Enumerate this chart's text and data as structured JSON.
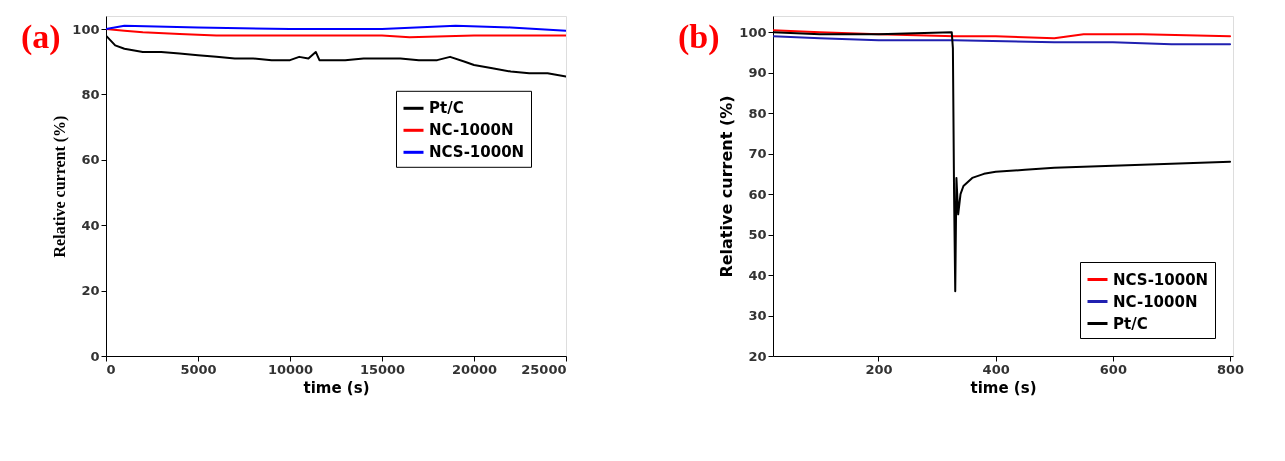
{
  "chart_data": [
    {
      "type": "line",
      "annotations": [
        "(a)"
      ],
      "xlabel": "time (s)",
      "ylabel": "Relative current (%)",
      "xlim": [
        0,
        25000
      ],
      "ylim": [
        0,
        104
      ],
      "xticks": [
        0,
        5000,
        10000,
        15000,
        20000,
        25000
      ],
      "yticks": [
        0,
        20,
        40,
        60,
        80,
        100
      ],
      "grid": false,
      "legend": "right",
      "line_style": "solid",
      "marker": "none",
      "series": [
        {
          "name": "Pt/C",
          "color": "#000000",
          "x": [
            0,
            500,
            1000,
            2000,
            3000,
            4000,
            5000,
            6000,
            7000,
            8000,
            9000,
            10000,
            10500,
            11000,
            11400,
            11600,
            12000,
            13000,
            14000,
            15000,
            16000,
            17000,
            18000,
            18700,
            19500,
            20000,
            21000,
            22000,
            23000,
            24000,
            25000
          ],
          "values": [
            98,
            95,
            94,
            93,
            93,
            92.5,
            92,
            91.5,
            91,
            91,
            90.5,
            90.5,
            91.5,
            91,
            93,
            90.5,
            90.5,
            90.5,
            91,
            91,
            91,
            90.5,
            90.5,
            91.5,
            90,
            89,
            88,
            87,
            86.5,
            86.5,
            85.5
          ]
        },
        {
          "name": "NC-1000N",
          "color": "#ff0000",
          "x": [
            0,
            1000,
            2000,
            4000,
            6000,
            10000,
            15000,
            16500,
            20000,
            25000
          ],
          "values": [
            100,
            99.5,
            99,
            98.5,
            98,
            98,
            98,
            97.5,
            98,
            98
          ]
        },
        {
          "name": "NCS-1000N",
          "color": "#0000ff",
          "x": [
            0,
            1000,
            5000,
            10000,
            15000,
            19000,
            22000,
            25000
          ],
          "values": [
            100,
            101,
            100.5,
            100,
            100,
            101,
            100.5,
            99.5
          ]
        }
      ]
    },
    {
      "type": "line",
      "annotations": [
        "(b)"
      ],
      "xlabel": "time (s)",
      "ylabel": "Relative current (%)",
      "xlim": [
        20,
        805
      ],
      "ylim": [
        20,
        104
      ],
      "xticks": [
        200,
        400,
        600,
        800
      ],
      "yticks": [
        20,
        30,
        40,
        50,
        60,
        70,
        80,
        90,
        100
      ],
      "grid": false,
      "legend": "bottom right",
      "line_style": "solid",
      "marker": "none",
      "series": [
        {
          "name": "NCS-1000N",
          "color": "#ff0000",
          "x": [
            20,
            100,
            200,
            330,
            400,
            500,
            550,
            650,
            800
          ],
          "values": [
            100.5,
            100,
            99.5,
            99,
            99,
            98.5,
            99.5,
            99.5,
            99
          ]
        },
        {
          "name": "NC-1000N",
          "color": "#2020b0",
          "x": [
            20,
            100,
            200,
            330,
            500,
            600,
            700,
            800
          ],
          "values": [
            99,
            98.5,
            98,
            98,
            97.5,
            97.5,
            97,
            97
          ]
        },
        {
          "name": "Pt/C",
          "color": "#000000",
          "x": [
            20,
            100,
            200,
            325,
            327,
            329,
            331,
            333,
            336,
            340,
            345,
            360,
            380,
            400,
            450,
            500,
            600,
            700,
            800
          ],
          "values": [
            100,
            99.5,
            99.5,
            100,
            96,
            60,
            36,
            64,
            55,
            60,
            62,
            64,
            65,
            65.5,
            66,
            66.5,
            67,
            67.5,
            68
          ]
        }
      ]
    }
  ]
}
